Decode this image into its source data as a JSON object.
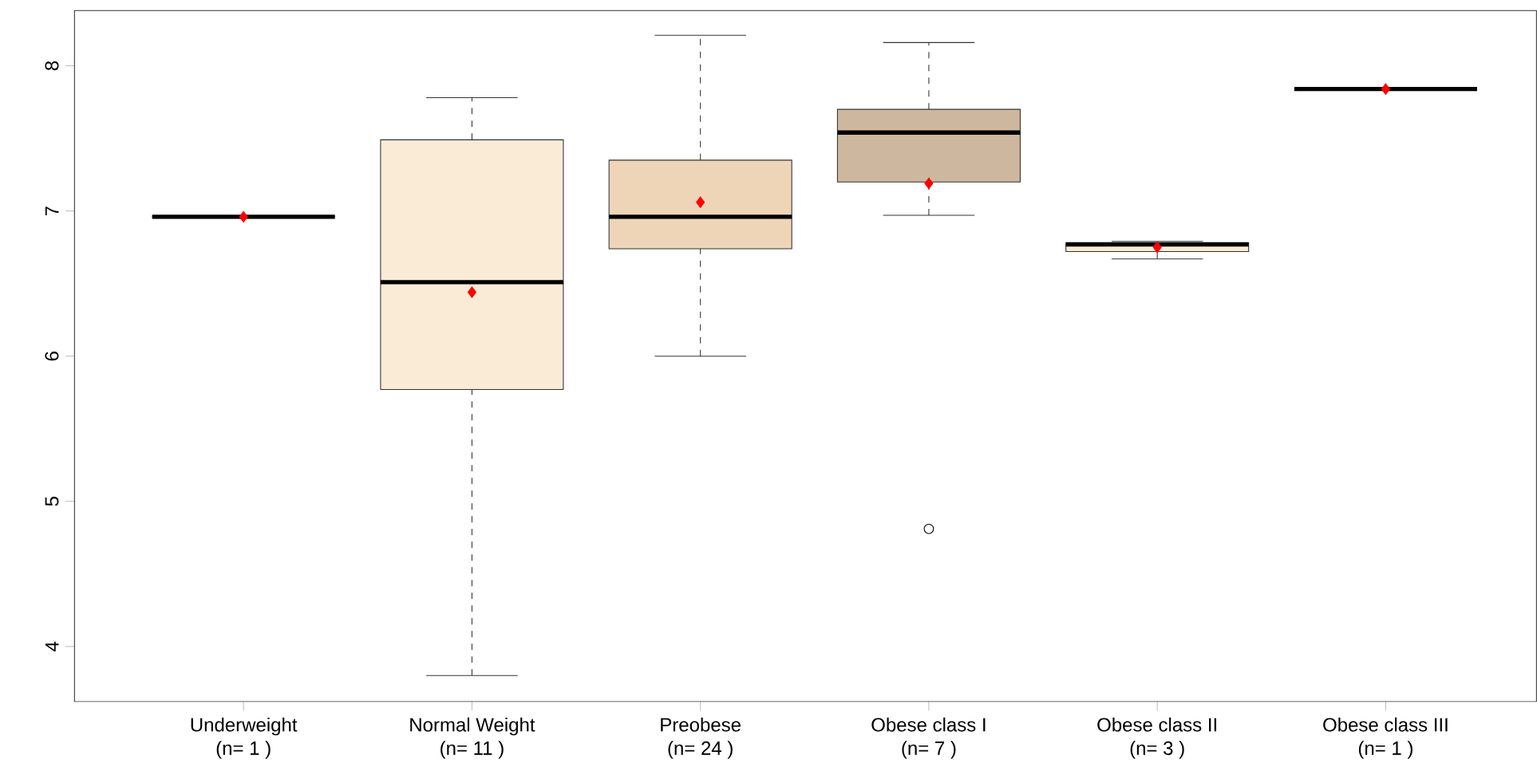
{
  "chart_data": {
    "type": "box",
    "categories": [
      "Underweight\n(n= 1 )",
      "Normal Weight\n(n= 11 )",
      "Preobese\n(n= 24 )",
      "Obese class I\n(n= 7 )",
      "Obese class II\n(n= 3 )",
      "Obese class III\n(n= 1 )"
    ],
    "boxes": [
      {
        "low": 6.96,
        "q1": 6.96,
        "median": 6.96,
        "q3": 6.96,
        "high": 6.96,
        "mean": 6.96
      },
      {
        "low": 3.8,
        "q1": 5.77,
        "median": 6.51,
        "q3": 7.49,
        "high": 7.78,
        "mean": 6.44
      },
      {
        "low": 6.0,
        "q1": 6.74,
        "median": 6.96,
        "q3": 7.35,
        "high": 8.21,
        "mean": 7.06
      },
      {
        "low": 6.97,
        "q1": 7.2,
        "median": 7.54,
        "q3": 7.7,
        "high": 8.16,
        "mean": 7.19,
        "outliers": [
          4.81
        ]
      },
      {
        "low": 6.67,
        "q1": 6.72,
        "median": 6.77,
        "q3": 6.78,
        "high": 6.79,
        "mean": 6.75
      },
      {
        "low": 7.84,
        "q1": 7.84,
        "median": 7.84,
        "q3": 7.84,
        "high": 7.84,
        "mean": 7.84
      }
    ],
    "colors": [
      null,
      "#faebd7",
      "#eed5b7",
      "#cdb79e",
      "#faebd7",
      null
    ],
    "ylim": [
      3.62,
      8.38
    ],
    "yticks": [
      4,
      5,
      6,
      7,
      8
    ],
    "grid": false
  }
}
